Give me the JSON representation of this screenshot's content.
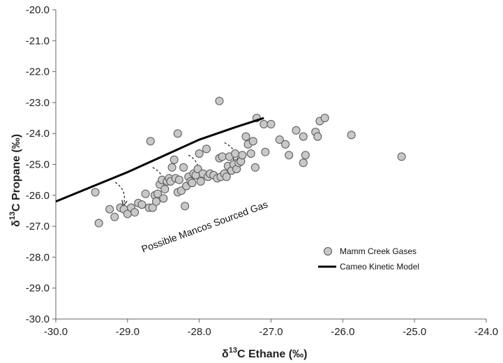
{
  "chart_data": {
    "type": "scatter",
    "xlim": [
      -30.0,
      -24.0
    ],
    "ylim": [
      -30.0,
      -20.0
    ],
    "x_ticks": [
      "-30.0",
      "-29.0",
      "-28.0",
      "-27.0",
      "-26.0",
      "-25.0",
      "-24.0"
    ],
    "y_ticks": [
      "-20.0",
      "-21.0",
      "-22.0",
      "-23.0",
      "-24.0",
      "-25.0",
      "-26.0",
      "-27.0",
      "-28.0",
      "-29.0",
      "-30.0"
    ],
    "xlabel_symbol": "δ",
    "xlabel_sup": "13",
    "xlabel_rest": "C Ethane (‰)",
    "ylabel_symbol": "δ",
    "ylabel_sup": "13",
    "ylabel_rest": "C  Propane (‰)",
    "annotation": "Possible Mancos Sourced Gas",
    "grid": false,
    "legend_position": "bottom-right",
    "marker_color": "#c8c8c8",
    "line_color": "#000000",
    "series": [
      {
        "name": "Mamm Creek Gases",
        "kind": "scatter",
        "points": [
          [
            -29.45,
            -25.9
          ],
          [
            -29.4,
            -26.9
          ],
          [
            -29.25,
            -26.45
          ],
          [
            -29.18,
            -26.7
          ],
          [
            -29.1,
            -26.4
          ],
          [
            -29.05,
            -26.45
          ],
          [
            -29.0,
            -26.6
          ],
          [
            -28.95,
            -26.4
          ],
          [
            -28.9,
            -26.55
          ],
          [
            -28.85,
            -26.25
          ],
          [
            -28.8,
            -26.3
          ],
          [
            -28.75,
            -25.95
          ],
          [
            -28.7,
            -26.4
          ],
          [
            -28.65,
            -26.4
          ],
          [
            -28.62,
            -26.0
          ],
          [
            -28.6,
            -26.2
          ],
          [
            -28.58,
            -25.95
          ],
          [
            -28.55,
            -25.65
          ],
          [
            -28.52,
            -25.5
          ],
          [
            -28.5,
            -26.1
          ],
          [
            -28.48,
            -25.8
          ],
          [
            -28.45,
            -25.55
          ],
          [
            -28.42,
            -25.45
          ],
          [
            -28.4,
            -25.55
          ],
          [
            -28.38,
            -25.1
          ],
          [
            -28.35,
            -24.85
          ],
          [
            -28.33,
            -25.45
          ],
          [
            -28.3,
            -25.9
          ],
          [
            -28.28,
            -25.5
          ],
          [
            -28.25,
            -25.85
          ],
          [
            -28.22,
            -25.1
          ],
          [
            -28.2,
            -26.35
          ],
          [
            -28.18,
            -25.7
          ],
          [
            -28.15,
            -25.4
          ],
          [
            -28.12,
            -25.55
          ],
          [
            -28.1,
            -25.6
          ],
          [
            -28.08,
            -25.3
          ],
          [
            -28.05,
            -25.35
          ],
          [
            -28.02,
            -25.15
          ],
          [
            -28.0,
            -24.65
          ],
          [
            -27.98,
            -25.55
          ],
          [
            -27.95,
            -25.3
          ],
          [
            -27.9,
            -24.5
          ],
          [
            -27.88,
            -25.4
          ],
          [
            -27.85,
            -25.3
          ],
          [
            -27.8,
            -25.35
          ],
          [
            -27.75,
            -25.45
          ],
          [
            -27.72,
            -24.8
          ],
          [
            -27.7,
            -25.4
          ],
          [
            -27.68,
            -24.75
          ],
          [
            -27.65,
            -25.3
          ],
          [
            -27.62,
            -25.4
          ],
          [
            -27.6,
            -25.05
          ],
          [
            -27.58,
            -24.75
          ],
          [
            -27.55,
            -25.2
          ],
          [
            -27.52,
            -25.0
          ],
          [
            -27.5,
            -24.65
          ],
          [
            -27.48,
            -25.15
          ],
          [
            -27.45,
            -24.95
          ],
          [
            -27.42,
            -24.9
          ],
          [
            -27.4,
            -24.7
          ],
          [
            -27.35,
            -24.1
          ],
          [
            -27.32,
            -24.35
          ],
          [
            -27.28,
            -24.65
          ],
          [
            -27.25,
            -24.25
          ],
          [
            -27.22,
            -25.1
          ],
          [
            -27.2,
            -23.5
          ],
          [
            -27.1,
            -23.7
          ],
          [
            -27.08,
            -24.6
          ],
          [
            -27.0,
            -23.7
          ],
          [
            -26.88,
            -24.2
          ],
          [
            -26.8,
            -24.35
          ],
          [
            -26.75,
            -24.7
          ],
          [
            -26.65,
            -23.9
          ],
          [
            -26.55,
            -24.1
          ],
          [
            -26.55,
            -24.95
          ],
          [
            -26.52,
            -24.7
          ],
          [
            -26.38,
            -23.95
          ],
          [
            -26.35,
            -24.1
          ],
          [
            -26.32,
            -23.6
          ],
          [
            -26.25,
            -23.5
          ],
          [
            -25.88,
            -24.05
          ],
          [
            -25.18,
            -24.75
          ],
          [
            -28.68,
            -24.25
          ],
          [
            -28.3,
            -24.0
          ],
          [
            -27.72,
            -22.95
          ]
        ]
      },
      {
        "name": "Cameo Kinetic Model",
        "kind": "line",
        "points": [
          [
            -30.0,
            -26.2
          ],
          [
            -29.0,
            -25.25
          ],
          [
            -28.0,
            -24.2
          ],
          [
            -27.5,
            -23.8
          ],
          [
            -27.1,
            -23.5
          ]
        ]
      }
    ],
    "arrows": [
      [
        [
          -29.17,
          -25.58
        ],
        [
          -29.05,
          -26.25
        ]
      ],
      [
        [
          -28.65,
          -25.1
        ],
        [
          -28.5,
          -25.7
        ]
      ],
      [
        [
          -28.15,
          -24.7
        ],
        [
          -28.02,
          -25.3
        ]
      ],
      [
        [
          -27.65,
          -24.3
        ],
        [
          -27.5,
          -24.85
        ]
      ]
    ]
  }
}
